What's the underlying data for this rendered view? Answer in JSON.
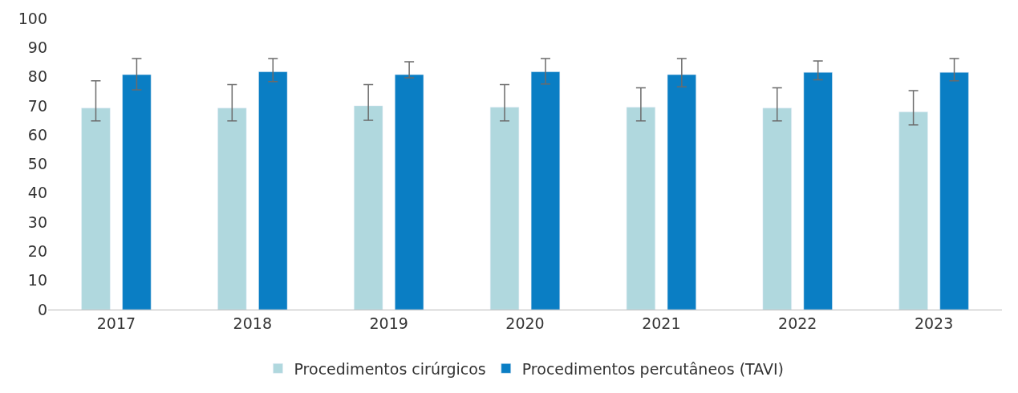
{
  "chart_data": {
    "type": "bar",
    "categories": [
      "2017",
      "2018",
      "2019",
      "2020",
      "2021",
      "2022",
      "2023"
    ],
    "series": [
      {
        "name": "Procedimentos cirúrgicos",
        "color": "#b0d8de",
        "values": [
          69.2,
          69.2,
          70.0,
          69.5,
          69.5,
          69.2,
          67.9
        ],
        "errors": [
          [
            64.8,
            78.6
          ],
          [
            64.8,
            77.3
          ],
          [
            65.0,
            77.3
          ],
          [
            64.8,
            77.3
          ],
          [
            64.8,
            76.2
          ],
          [
            64.8,
            76.2
          ],
          [
            63.4,
            75.2
          ]
        ]
      },
      {
        "name": "Procedimentos percutâneos (TAVI)",
        "color": "#0a7ec4",
        "values": [
          80.7,
          81.7,
          80.7,
          81.7,
          80.7,
          81.5,
          81.5
        ],
        "errors": [
          [
            75.5,
            86.2
          ],
          [
            78.3,
            86.2
          ],
          [
            79.6,
            85.1
          ],
          [
            77.5,
            86.2
          ],
          [
            76.5,
            86.2
          ],
          [
            78.9,
            85.4
          ],
          [
            78.6,
            86.2
          ]
        ]
      }
    ],
    "ylim": [
      0,
      100
    ],
    "yticks": [
      0,
      10,
      20,
      30,
      40,
      50,
      60,
      70,
      80,
      90,
      100
    ],
    "legend": "bottom"
  }
}
